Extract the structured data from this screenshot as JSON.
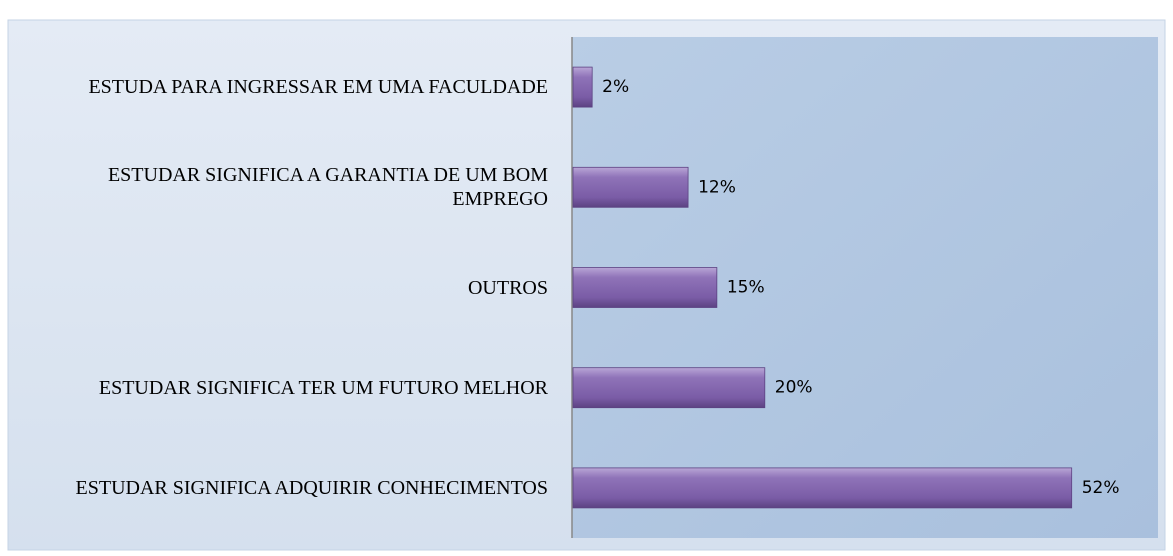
{
  "chart_data": {
    "type": "bar",
    "orientation": "horizontal",
    "categories": [
      "ESTUDA PARA INGRESSAR EM UMA FACULDADE",
      "ESTUDAR SIGNIFICA A GARANTIA DE UM BOM EMPREGO",
      "OUTROS",
      "ESTUDAR SIGNIFICA TER UM FUTURO MELHOR",
      "ESTUDAR SIGNIFICA ADQUIRIR CONHECIMENTOS"
    ],
    "values": [
      2,
      12,
      15,
      20,
      52
    ],
    "value_labels": [
      "2%",
      "12%",
      "15%",
      "20%",
      "52%"
    ],
    "color": "#8064a2",
    "xlim": [
      0,
      61
    ]
  }
}
